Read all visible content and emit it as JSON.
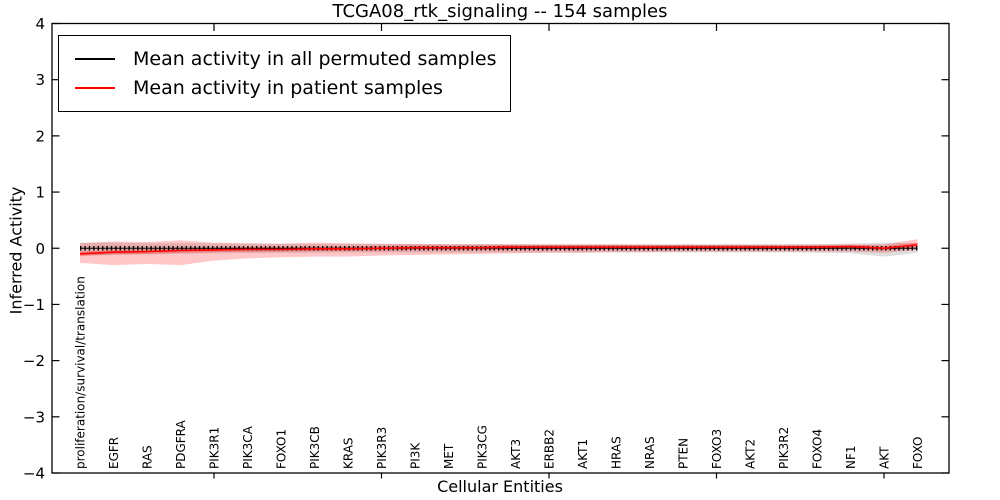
{
  "title": "TCGA08_rtk_signaling -- 154 samples",
  "chart_data": {
    "type": "line",
    "title": "TCGA08_rtk_signaling -- 154 samples",
    "xlabel": "Cellular Entities",
    "ylabel": "Inferred Activity",
    "ylim": [
      -4,
      4
    ],
    "yticks": [
      -4,
      -3,
      -2,
      -1,
      0,
      1,
      2,
      3,
      4
    ],
    "xtick_every": 5,
    "grid": false,
    "legend_position": "upper left",
    "categories": [
      "proliferation/survival/translation",
      "EGFR",
      "RAS",
      "PDGFRA",
      "PIK3R1",
      "PIK3CA",
      "FOXO1",
      "PIK3CB",
      "KRAS",
      "PIK3R3",
      "PI3K",
      "MET",
      "PIK3CG",
      "AKT3",
      "ERBB2",
      "AKT1",
      "HRAS",
      "NRAS",
      "PTEN",
      "FOXO3",
      "AKT2",
      "PIK3R2",
      "FOXO4",
      "NF1",
      "AKT",
      "FOXO"
    ],
    "series": [
      {
        "name": "Mean activity in all permuted samples",
        "color": "#000000",
        "marker": "vertical-tick",
        "values": [
          0,
          0,
          0,
          0,
          0,
          0,
          0,
          0,
          0,
          0,
          0,
          0,
          0,
          0,
          0,
          0,
          0,
          0,
          0,
          0,
          0,
          0,
          0,
          0,
          0,
          0
        ]
      },
      {
        "name": "Mean activity in patient samples",
        "color": "#ff0000",
        "marker": "none",
        "values": [
          -0.1,
          -0.07,
          -0.06,
          -0.04,
          -0.03,
          -0.02,
          -0.02,
          -0.01,
          -0.01,
          0.0,
          0.01,
          0.01,
          0.01,
          0.02,
          0.02,
          0.02,
          0.02,
          0.02,
          0.02,
          0.02,
          0.02,
          0.02,
          0.02,
          0.03,
          0.0,
          0.06
        ]
      }
    ],
    "bands": [
      {
        "name": "permuted-samples-spread",
        "color": "#000000",
        "opacity": 0.13,
        "upper": [
          0.1,
          0.1,
          0.09,
          0.09,
          0.085,
          0.08,
          0.08,
          0.075,
          0.075,
          0.075,
          0.075,
          0.075,
          0.075,
          0.075,
          0.075,
          0.075,
          0.075,
          0.075,
          0.075,
          0.075,
          0.075,
          0.075,
          0.075,
          0.08,
          0.1,
          0.09
        ],
        "lower": [
          -0.13,
          -0.12,
          -0.11,
          -0.1,
          -0.09,
          -0.085,
          -0.08,
          -0.08,
          -0.075,
          -0.075,
          -0.075,
          -0.075,
          -0.075,
          -0.075,
          -0.075,
          -0.075,
          -0.075,
          -0.075,
          -0.075,
          -0.075,
          -0.075,
          -0.075,
          -0.08,
          -0.09,
          -0.15,
          -0.08
        ]
      },
      {
        "name": "patient-samples-spread",
        "color": "#ff0000",
        "opacity": 0.22,
        "upper": [
          0.09,
          0.12,
          0.11,
          0.14,
          0.1,
          0.09,
          0.08,
          0.1,
          0.09,
          0.08,
          0.08,
          0.07,
          0.07,
          0.065,
          0.06,
          0.06,
          0.06,
          0.055,
          0.055,
          0.055,
          0.055,
          0.05,
          0.05,
          0.06,
          0.07,
          0.16
        ],
        "lower": [
          -0.26,
          -0.3,
          -0.28,
          -0.3,
          -0.22,
          -0.18,
          -0.16,
          -0.15,
          -0.15,
          -0.13,
          -0.12,
          -0.11,
          -0.1,
          -0.09,
          -0.08,
          -0.08,
          -0.07,
          -0.07,
          -0.06,
          -0.06,
          -0.06,
          -0.06,
          -0.06,
          -0.06,
          -0.08,
          -0.03
        ]
      }
    ],
    "inner_band_halfwidth": 0.04,
    "legend": [
      "Mean activity in all permuted samples",
      "Mean activity in patient samples"
    ]
  }
}
